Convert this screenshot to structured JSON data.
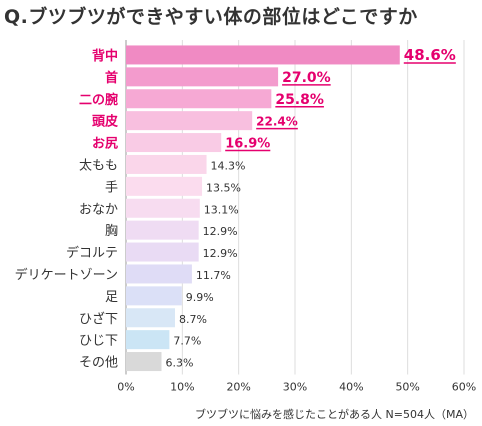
{
  "title": "Q.ブツブツができやすい体の部位はどこですか",
  "caption": "ブツブツに悩みを感じたことがある人 N=504人（MA）",
  "chart_data": {
    "type": "bar",
    "orientation": "horizontal",
    "categories": [
      "背中",
      "首",
      "二の腕",
      "頭皮",
      "お尻",
      "太もも",
      "手",
      "おなか",
      "胸",
      "デコルテ",
      "デリケートゾーン",
      "足",
      "ひざ下",
      "ひじ下",
      "その他"
    ],
    "values": [
      48.6,
      27.0,
      25.8,
      22.4,
      16.9,
      14.3,
      13.5,
      13.1,
      12.9,
      12.9,
      11.7,
      9.9,
      8.7,
      7.7,
      6.3
    ],
    "value_labels": [
      "48.6%",
      "27.0%",
      "25.8%",
      "22.4%",
      "16.9%",
      "14.3%",
      "13.5%",
      "13.1%",
      "12.9%",
      "12.9%",
      "11.7%",
      "9.9%",
      "8.7%",
      "7.7%",
      "6.3%"
    ],
    "highlight_count": 5,
    "bar_colors": [
      "#f08ac3",
      "#f39bcd",
      "#f6a9d4",
      "#f8bfdf",
      "#f9cbe5",
      "#fad6ea",
      "#fbdcee",
      "#f7dcf0",
      "#efdcf3",
      "#e9dbf4",
      "#dfdcf6",
      "#dbe0f7",
      "#d8e7f6",
      "#cbe5f5",
      "#d9d9d9"
    ],
    "highlight_color": "#e5006e",
    "xlim": [
      0,
      60
    ],
    "xticks": [
      "0%",
      "10%",
      "20%",
      "30%",
      "40%",
      "50%",
      "60%"
    ],
    "grid": true,
    "legend": "none"
  }
}
